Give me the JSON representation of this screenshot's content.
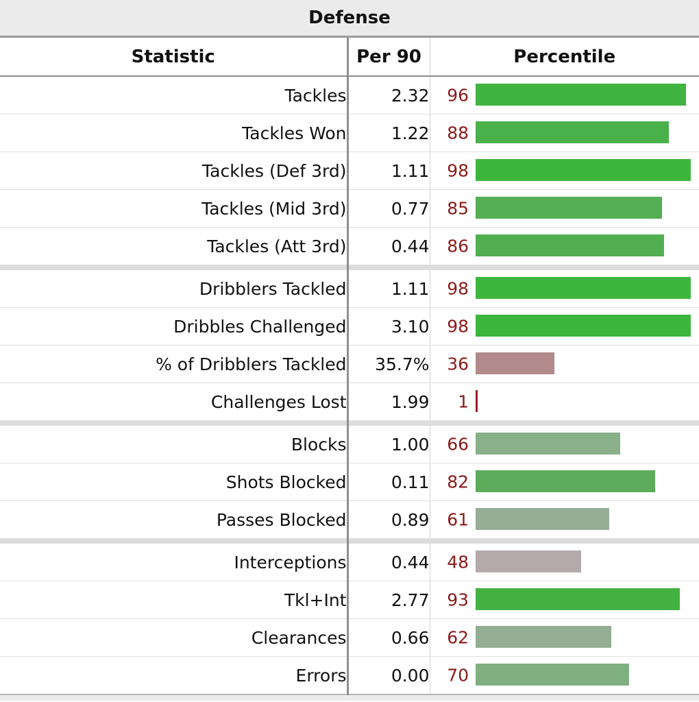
{
  "table": {
    "title": "Defense",
    "columns": {
      "statistic": "Statistic",
      "per90": "Per 90",
      "percentile": "Percentile"
    },
    "groups": [
      [
        {
          "label": "Tackles",
          "per90": "2.32",
          "pct": "96",
          "pct_value": 96,
          "color": "#3fb43f"
        },
        {
          "label": "Tackles Won",
          "per90": "1.22",
          "pct": "88",
          "pct_value": 88,
          "color": "#4ab04a"
        },
        {
          "label": "Tackles (Def 3rd)",
          "per90": "1.11",
          "pct": "98",
          "pct_value": 98,
          "color": "#3db63d"
        },
        {
          "label": "Tackles (Mid 3rd)",
          "per90": "0.77",
          "pct": "85",
          "pct_value": 85,
          "color": "#54ae54"
        },
        {
          "label": "Tackles (Att 3rd)",
          "per90": "0.44",
          "pct": "86",
          "pct_value": 86,
          "color": "#51af51"
        }
      ],
      [
        {
          "label": "Dribblers Tackled",
          "per90": "1.11",
          "pct": "98",
          "pct_value": 98,
          "color": "#3db63d"
        },
        {
          "label": "Dribbles Challenged",
          "per90": "3.10",
          "pct": "98",
          "pct_value": 98,
          "color": "#3db63d"
        },
        {
          "label": "% of Dribblers Tackled",
          "per90": "35.7%",
          "pct": "36",
          "pct_value": 36,
          "color": "#b38a8c"
        },
        {
          "label": "Challenges Lost",
          "per90": "1.99",
          "pct": "1",
          "pct_value": 1,
          "color": "#a01c2a"
        }
      ],
      [
        {
          "label": "Blocks",
          "per90": "1.00",
          "pct": "66",
          "pct_value": 66,
          "color": "#8ab08a"
        },
        {
          "label": "Shots Blocked",
          "per90": "0.11",
          "pct": "82",
          "pct_value": 82,
          "color": "#5cac5c"
        },
        {
          "label": "Passes Blocked",
          "per90": "0.89",
          "pct": "61",
          "pct_value": 61,
          "color": "#96ae96"
        }
      ],
      [
        {
          "label": "Interceptions",
          "per90": "0.44",
          "pct": "48",
          "pct_value": 48,
          "color": "#b4a9ab"
        },
        {
          "label": "Tkl+Int",
          "per90": "2.77",
          "pct": "93",
          "pct_value": 93,
          "color": "#43b243"
        },
        {
          "label": "Clearances",
          "per90": "0.66",
          "pct": "62",
          "pct_value": 62,
          "color": "#93ae93"
        },
        {
          "label": "Errors",
          "per90": "0.00",
          "pct": "70",
          "pct_value": 70,
          "color": "#80b080"
        }
      ]
    ]
  }
}
